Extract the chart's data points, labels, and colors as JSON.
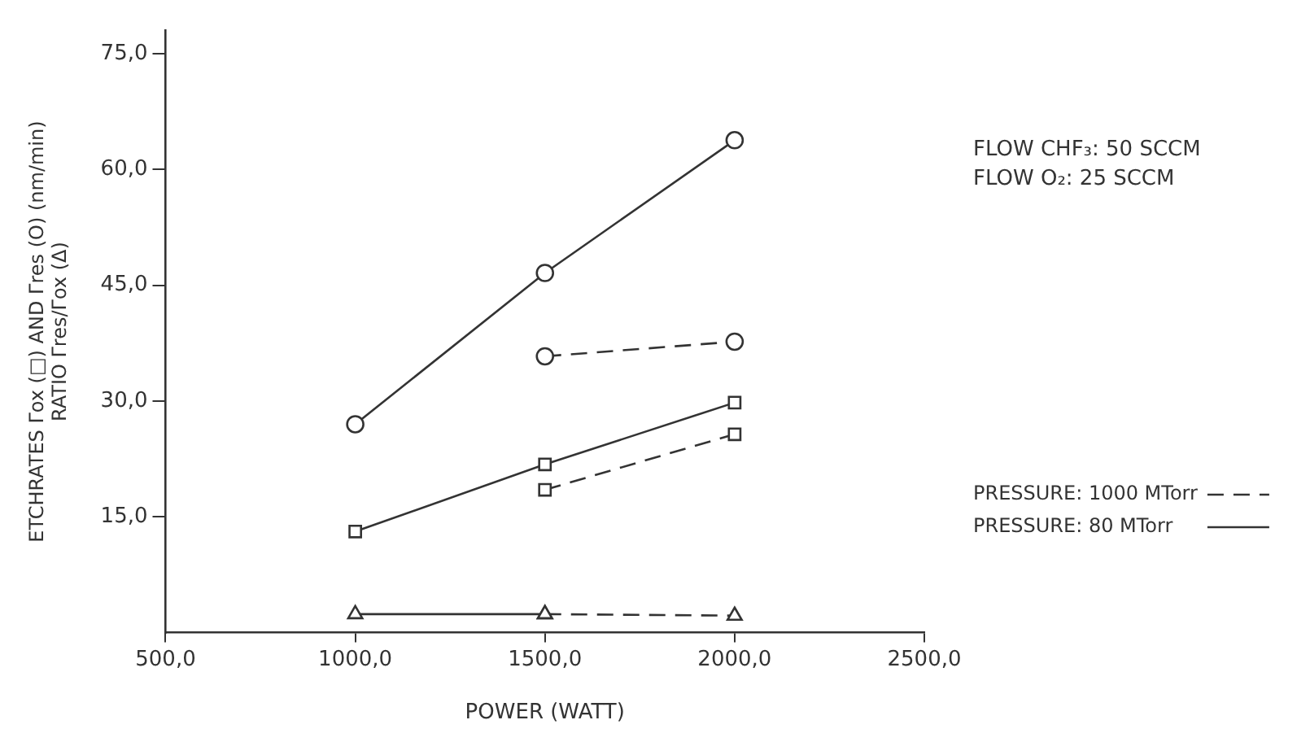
{
  "chart_data": {
    "type": "line",
    "xlabel": "POWER (WATT)",
    "ylabel": "ETCHRATES Γox (□) AND Γres (O) (nm/min)\nRATIO Γres/Γox (Δ)",
    "x": [
      1000,
      1500,
      2000
    ],
    "series": [
      {
        "name": "PRESSURE: 1000 MTorr",
        "color": "#333333",
        "marker": "circle",
        "line_style": "dashed",
        "values": [
          null,
          35.8,
          37.7
        ]
      },
      {
        "name": "PRESSURE: 80 MTorr",
        "color": "#333333",
        "marker": "circle",
        "line_style": "solid",
        "values": [
          27.0,
          46.6,
          63.8
        ]
      },
      {
        "color": "#333333",
        "marker": "square",
        "line_style": "dashed",
        "values": [
          null,
          18.5,
          25.7
        ]
      },
      {
        "color": "#333333",
        "marker": "square",
        "line_style": "solid",
        "values": [
          13.1,
          21.8,
          29.8
        ]
      },
      {
        "color": "#333333",
        "marker": "triangle",
        "line_style": "dashed",
        "values": [
          null,
          2.4,
          2.2
        ]
      },
      {
        "color": "#333333",
        "marker": "triangle",
        "line_style": "solid",
        "values": [
          2.4,
          2.4,
          null
        ]
      }
    ],
    "xlim": [
      500,
      2500
    ],
    "ylim": [
      0,
      78
    ],
    "xticks": [
      {
        "value": 500,
        "label": "500,0"
      },
      {
        "value": 1000,
        "label": "1000,0"
      },
      {
        "value": 1500,
        "label": "1500,0"
      },
      {
        "value": 2000,
        "label": "2000,0"
      },
      {
        "value": 2500,
        "label": "2500,0"
      }
    ],
    "yticks": [
      {
        "value": 15,
        "label": "15,0"
      },
      {
        "value": 30,
        "label": "30,0"
      },
      {
        "value": 45,
        "label": "45,0"
      },
      {
        "value": 60,
        "label": "60,0"
      },
      {
        "value": 75,
        "label": "75,0"
      }
    ],
    "grid": false,
    "legend": "right",
    "annotations": [
      "FLOW CHF₃: 50 SCCM",
      "FLOW O₂: 25 SCCM"
    ]
  }
}
